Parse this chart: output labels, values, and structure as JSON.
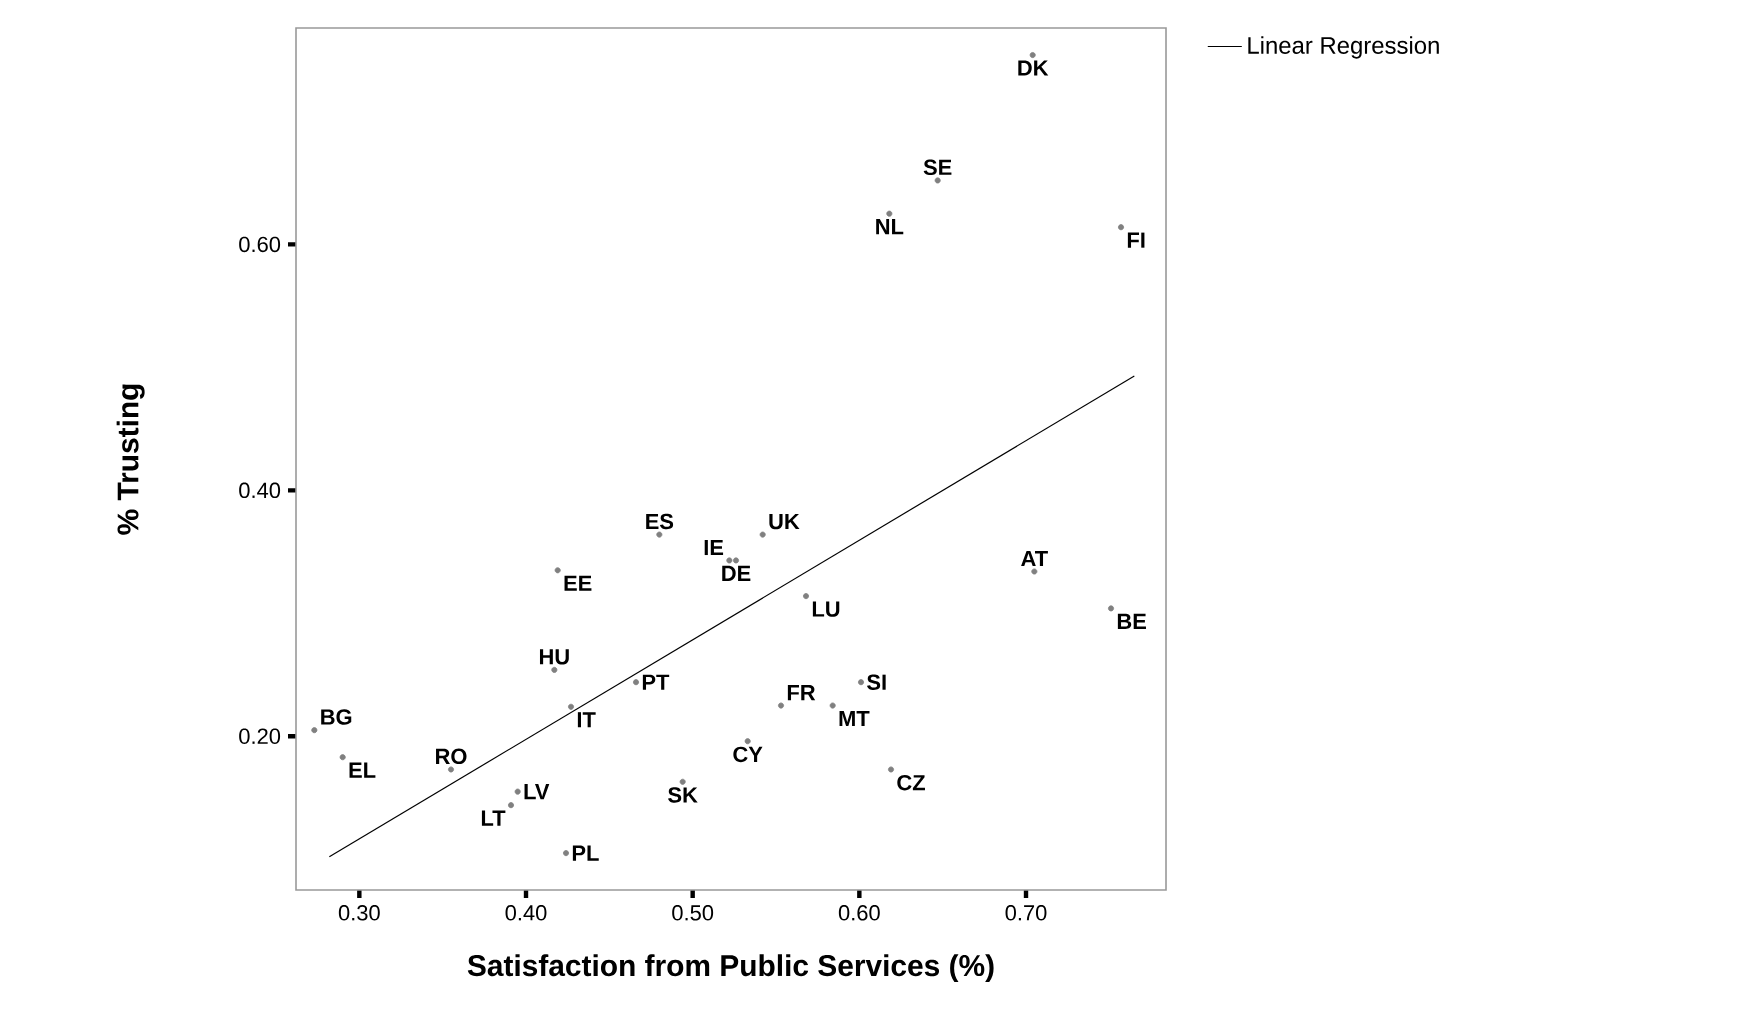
{
  "chart_data": {
    "type": "scatter",
    "xlabel": "Satisfaction from  Public Services (%)",
    "ylabel": "% Trusting",
    "xlim": [
      0.262,
      0.784
    ],
    "ylim": [
      0.075,
      0.776
    ],
    "xticks": [
      {
        "value": 0.3,
        "label": "0.30"
      },
      {
        "value": 0.4,
        "label": "0.40"
      },
      {
        "value": 0.5,
        "label": "0.50"
      },
      {
        "value": 0.6,
        "label": "0.60"
      },
      {
        "value": 0.7,
        "label": "0.70"
      }
    ],
    "yticks": [
      {
        "value": 0.2,
        "label": "0.20"
      },
      {
        "value": 0.4,
        "label": "0.40"
      },
      {
        "value": 0.6,
        "label": "0.60"
      }
    ],
    "grid": false,
    "legend": "top right",
    "series": [
      {
        "marker": "circle",
        "color": "#808080",
        "x": [
          0.704,
          0.647,
          0.618,
          0.757,
          0.48,
          0.542,
          0.522,
          0.526,
          0.419,
          0.705,
          0.568,
          0.751,
          0.417,
          0.466,
          0.601,
          0.553,
          0.584,
          0.427,
          0.273,
          0.29,
          0.533,
          0.355,
          0.619,
          0.494,
          0.395,
          0.391,
          0.424
        ],
        "values": [
          0.754,
          0.652,
          0.625,
          0.614,
          0.364,
          0.364,
          0.343,
          0.343,
          0.335,
          0.334,
          0.314,
          0.304,
          0.254,
          0.244,
          0.244,
          0.225,
          0.225,
          0.224,
          0.205,
          0.183,
          0.196,
          0.173,
          0.173,
          0.163,
          0.155,
          0.144,
          0.105
        ]
      },
      {
        "type": "line",
        "marker": "none",
        "name": "Linear Regression",
        "color": "#000000",
        "x": [
          0.282,
          0.765
        ],
        "values": [
          0.102,
          0.493
        ]
      }
    ],
    "annotations": [
      {
        "text": "DK",
        "x": 0.704,
        "y": 0.754
      },
      {
        "text": "SE",
        "x": 0.647,
        "y": 0.652
      },
      {
        "text": "NL",
        "x": 0.618,
        "y": 0.625
      },
      {
        "text": "FI",
        "x": 0.757,
        "y": 0.614
      },
      {
        "text": "ES",
        "x": 0.48,
        "y": 0.364
      },
      {
        "text": "UK",
        "x": 0.542,
        "y": 0.364
      },
      {
        "text": "IE",
        "x": 0.522,
        "y": 0.343
      },
      {
        "text": "DE",
        "x": 0.526,
        "y": 0.343
      },
      {
        "text": "EE",
        "x": 0.419,
        "y": 0.335
      },
      {
        "text": "AT",
        "x": 0.705,
        "y": 0.334
      },
      {
        "text": "LU",
        "x": 0.568,
        "y": 0.314
      },
      {
        "text": "BE",
        "x": 0.751,
        "y": 0.304
      },
      {
        "text": "HU",
        "x": 0.417,
        "y": 0.254
      },
      {
        "text": "PT",
        "x": 0.466,
        "y": 0.244
      },
      {
        "text": "SI",
        "x": 0.601,
        "y": 0.244
      },
      {
        "text": "FR",
        "x": 0.553,
        "y": 0.225
      },
      {
        "text": "MT",
        "x": 0.584,
        "y": 0.225
      },
      {
        "text": "IT",
        "x": 0.427,
        "y": 0.224
      },
      {
        "text": "BG",
        "x": 0.273,
        "y": 0.205
      },
      {
        "text": "EL",
        "x": 0.29,
        "y": 0.183
      },
      {
        "text": "CY",
        "x": 0.533,
        "y": 0.196
      },
      {
        "text": "RO",
        "x": 0.355,
        "y": 0.173
      },
      {
        "text": "CZ",
        "x": 0.619,
        "y": 0.173
      },
      {
        "text": "SK",
        "x": 0.494,
        "y": 0.163
      },
      {
        "text": "LV",
        "x": 0.395,
        "y": 0.155
      },
      {
        "text": "LT",
        "x": 0.391,
        "y": 0.144
      },
      {
        "text": "PL",
        "x": 0.424,
        "y": 0.105
      }
    ]
  }
}
